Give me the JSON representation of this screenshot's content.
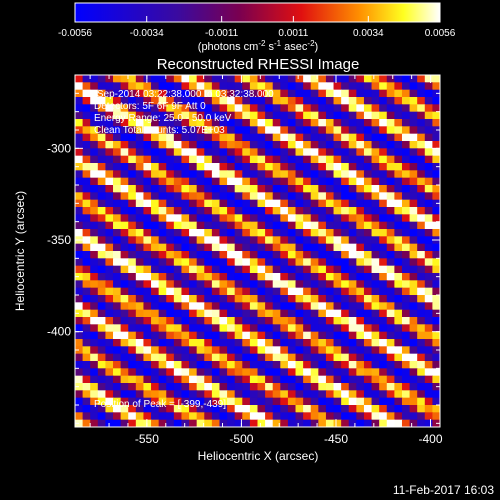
{
  "chart_data": {
    "type": "heatmap",
    "title": "Reconstructed RHESSI Image",
    "xlabel": "Heliocentric X (arcsec)",
    "ylabel": "Heliocentric Y (arcsec)",
    "xlim": [
      -588,
      -395
    ],
    "ylim": [
      -452,
      -260
    ],
    "xticks": [
      "-550",
      "-500",
      "-450",
      "-400"
    ],
    "xtick_values": [
      -550,
      -500,
      -450,
      -400
    ],
    "yticks": [
      "-300",
      "-350",
      "-400"
    ],
    "ytick_values": [
      -300,
      -350,
      -400
    ],
    "colorbar": {
      "min": -0.0056,
      "max": 0.0056,
      "ticks": [
        "-0.0056",
        "-0.0034",
        "-0.0011",
        "0.0011",
        "0.0034",
        "0.0056"
      ],
      "tick_values": [
        -0.0056,
        -0.0034,
        -0.0011,
        0.0011,
        0.0034,
        0.0056
      ],
      "colormap": "blue-purple-red-yellow-white"
    },
    "annotations": [
      "8-Sep-2014 03:22:38.000 to 03:32:38.000",
      "Detectors: 5F 6F 9F  Att 0",
      "Energy Range: 25.0 - 50.0 keV",
      "Clean    Total counts: 5.07E+03"
    ],
    "peak_label": "Position of Peak = [-399,-439]",
    "peak_position": [
      -399,
      -439
    ],
    "pattern": "diagonal stripes running upper-left to lower-right"
  },
  "colorbar_unit": {
    "pre": "(photons cm",
    "e1": "-2",
    "mid1": " s",
    "e2": "-1",
    "mid2": " asec",
    "e3": "-2",
    "post": ")"
  },
  "footer_date": "11-Feb-2017 16:03"
}
